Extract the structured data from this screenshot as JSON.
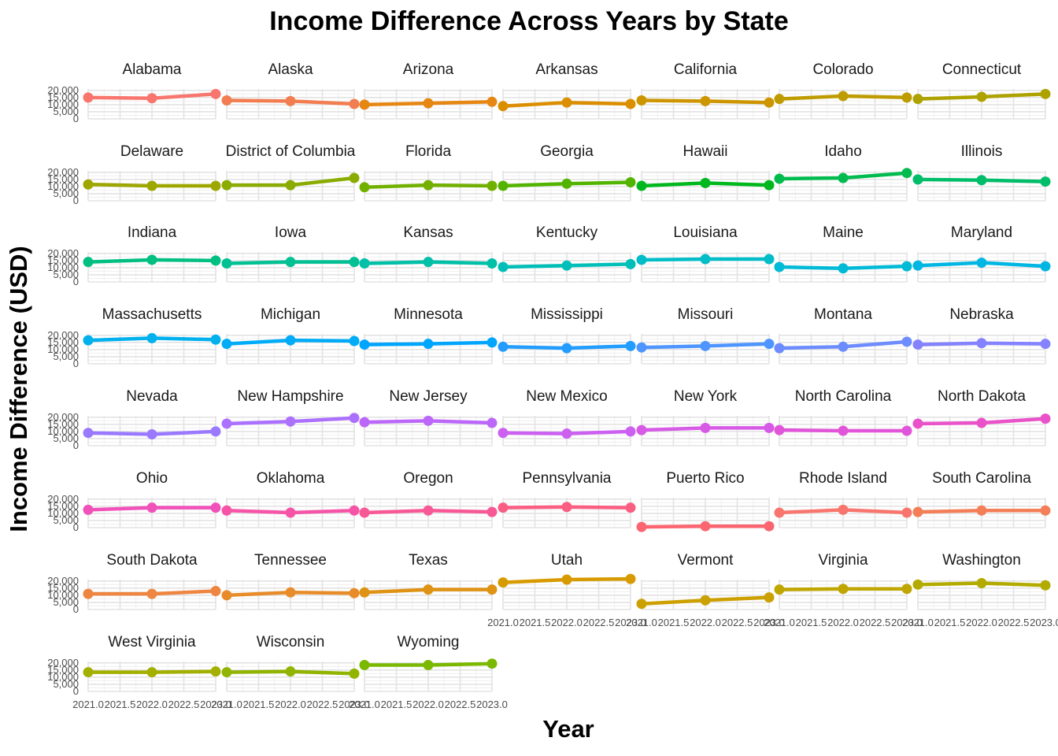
{
  "chart_data": {
    "type": "line",
    "title": "Income Difference Across Years by State",
    "xlabel": "Year",
    "ylabel": "Income Difference (USD)",
    "x": [
      2021,
      2022,
      2023
    ],
    "x_tick_labels": [
      "2021.0",
      "2021.5",
      "2022.0",
      "2022.5",
      "2023.0"
    ],
    "y_tick_labels": [
      "20,000",
      "15,000",
      "10,000",
      "5,000",
      "0"
    ],
    "y_ticks": [
      20000,
      15000,
      10000,
      5000,
      0
    ],
    "ylim": [
      0,
      21000
    ],
    "xlim": [
      2021,
      2023
    ],
    "series": [
      {
        "name": "Alabama",
        "color": "#F8766D",
        "values": [
          15000,
          14500,
          17500
        ]
      },
      {
        "name": "Alaska",
        "color": "#F17D51",
        "values": [
          13000,
          12500,
          10500
        ]
      },
      {
        "name": "Arizona",
        "color": "#E68613",
        "values": [
          10000,
          11000,
          12000
        ]
      },
      {
        "name": "Arkansas",
        "color": "#DB8E00",
        "values": [
          9000,
          11500,
          10500
        ]
      },
      {
        "name": "California",
        "color": "#CD9600",
        "values": [
          13000,
          12500,
          11500
        ]
      },
      {
        "name": "Colorado",
        "color": "#BE9C00",
        "values": [
          14000,
          16000,
          15000
        ]
      },
      {
        "name": "Connecticut",
        "color": "#AEA200",
        "values": [
          14000,
          15500,
          17500
        ]
      },
      {
        "name": "Delaware",
        "color": "#9DA700",
        "values": [
          11500,
          10500,
          10500
        ]
      },
      {
        "name": "District of Columbia",
        "color": "#8AAB00",
        "values": [
          11000,
          11000,
          16000
        ]
      },
      {
        "name": "Florida",
        "color": "#72B000",
        "values": [
          9500,
          11000,
          10500
        ]
      },
      {
        "name": "Georgia",
        "color": "#53B400",
        "values": [
          10500,
          12000,
          13000
        ]
      },
      {
        "name": "Hawaii",
        "color": "#00B81E",
        "values": [
          10500,
          12500,
          11000
        ]
      },
      {
        "name": "Idaho",
        "color": "#00BB4E",
        "values": [
          15500,
          16000,
          19500
        ]
      },
      {
        "name": "Illinois",
        "color": "#00BD6A",
        "values": [
          15000,
          14500,
          13500
        ]
      },
      {
        "name": "Indiana",
        "color": "#00BF80",
        "values": [
          14000,
          15500,
          15000
        ]
      },
      {
        "name": "Iowa",
        "color": "#00C094",
        "values": [
          13000,
          14000,
          14000
        ]
      },
      {
        "name": "Kansas",
        "color": "#00C0A7",
        "values": [
          13000,
          14000,
          13000
        ]
      },
      {
        "name": "Kentucky",
        "color": "#00BFB8",
        "values": [
          10500,
          11500,
          12500
        ]
      },
      {
        "name": "Louisiana",
        "color": "#00BDC7",
        "values": [
          15500,
          16000,
          16000
        ]
      },
      {
        "name": "Maine",
        "color": "#00BAD6",
        "values": [
          10500,
          9500,
          11000
        ]
      },
      {
        "name": "Maryland",
        "color": "#00B6E3",
        "values": [
          11500,
          13500,
          11000
        ]
      },
      {
        "name": "Massachusetts",
        "color": "#00B1EE",
        "values": [
          16500,
          18000,
          17000
        ]
      },
      {
        "name": "Michigan",
        "color": "#00ABF7",
        "values": [
          14000,
          16500,
          16000
        ]
      },
      {
        "name": "Minnesota",
        "color": "#00A5FE",
        "values": [
          13500,
          14000,
          15000
        ]
      },
      {
        "name": "Mississippi",
        "color": "#229DFF",
        "values": [
          12000,
          11000,
          12500
        ]
      },
      {
        "name": "Missouri",
        "color": "#4E95FF",
        "values": [
          11500,
          12500,
          14000
        ]
      },
      {
        "name": "Montana",
        "color": "#6C8CFF",
        "values": [
          11000,
          12000,
          15500
        ]
      },
      {
        "name": "Nebraska",
        "color": "#8482FF",
        "values": [
          13500,
          14500,
          14000
        ]
      },
      {
        "name": "Nevada",
        "color": "#9A79FF",
        "values": [
          9000,
          8000,
          10000
        ]
      },
      {
        "name": "New Hampshire",
        "color": "#AC70FF",
        "values": [
          15500,
          17000,
          19500
        ]
      },
      {
        "name": "New Jersey",
        "color": "#BC67FA",
        "values": [
          16500,
          17500,
          16000
        ]
      },
      {
        "name": "New Mexico",
        "color": "#CB60F1",
        "values": [
          9000,
          8500,
          10000
        ]
      },
      {
        "name": "New York",
        "color": "#D75AE6",
        "values": [
          11000,
          12500,
          12500
        ]
      },
      {
        "name": "North Carolina",
        "color": "#E155D9",
        "values": [
          11000,
          10500,
          10500
        ]
      },
      {
        "name": "North Dakota",
        "color": "#EA52C9",
        "values": [
          15500,
          16000,
          19000
        ]
      },
      {
        "name": "Ohio",
        "color": "#F052B9",
        "values": [
          12500,
          14000,
          14000
        ]
      },
      {
        "name": "Oklahoma",
        "color": "#F654A7",
        "values": [
          12000,
          10500,
          12000
        ]
      },
      {
        "name": "Oregon",
        "color": "#F85895",
        "values": [
          10500,
          12000,
          11000
        ]
      },
      {
        "name": "Pennsylvania",
        "color": "#FA5E82",
        "values": [
          14000,
          14500,
          14000
        ]
      },
      {
        "name": "Puerto Rico",
        "color": "#FB6570",
        "values": [
          500,
          1000,
          1000
        ]
      },
      {
        "name": "Rhode Island",
        "color": "#F8766D",
        "values": [
          10500,
          12500,
          10500
        ]
      },
      {
        "name": "South Carolina",
        "color": "#F47E57",
        "values": [
          11000,
          12000,
          12000
        ]
      },
      {
        "name": "South Dakota",
        "color": "#EE8540",
        "values": [
          11000,
          11000,
          13000
        ]
      },
      {
        "name": "Tennessee",
        "color": "#E78C29",
        "values": [
          10000,
          12000,
          11500
        ]
      },
      {
        "name": "Texas",
        "color": "#DF9314",
        "values": [
          12000,
          14000,
          14000
        ]
      },
      {
        "name": "Utah",
        "color": "#D79A00",
        "values": [
          19000,
          21000,
          21500
        ]
      },
      {
        "name": "Vermont",
        "color": "#CCA000",
        "values": [
          4000,
          6500,
          8500
        ]
      },
      {
        "name": "Virginia",
        "color": "#C0A600",
        "values": [
          14000,
          14500,
          14500
        ]
      },
      {
        "name": "Washington",
        "color": "#B3AB00",
        "values": [
          17500,
          18500,
          17000
        ]
      },
      {
        "name": "West Virginia",
        "color": "#A3B000",
        "values": [
          13500,
          13500,
          14000
        ]
      },
      {
        "name": "Wisconsin",
        "color": "#91B400",
        "values": [
          13500,
          14000,
          12500
        ]
      },
      {
        "name": "Wyoming",
        "color": "#7BB800",
        "values": [
          18500,
          18500,
          19500
        ]
      }
    ]
  }
}
